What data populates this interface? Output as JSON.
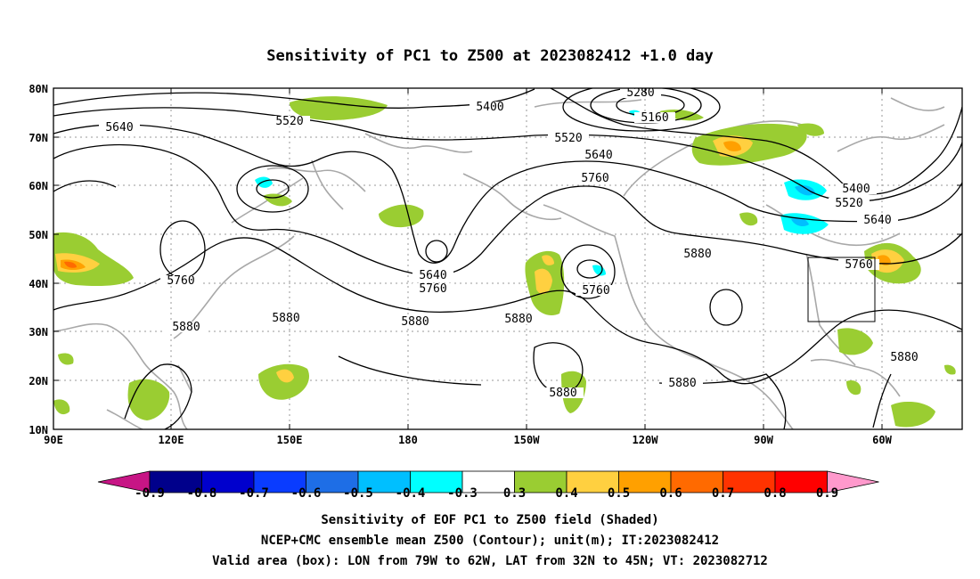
{
  "title": "Sensitivity of PC1 to Z500 at 2023082412 +1.0 day",
  "lat_ticks": [
    "80N",
    "70N",
    "60N",
    "50N",
    "40N",
    "30N",
    "20N",
    "10N"
  ],
  "lon_ticks": [
    "90E",
    "120E",
    "150E",
    "180",
    "150W",
    "120W",
    "90W",
    "60W"
  ],
  "contour_labels": [
    "5280",
    "5160",
    "5400",
    "5520",
    "5640",
    "5520",
    "5640",
    "5760",
    "5640",
    "5760",
    "5880",
    "5760",
    "5880",
    "5880",
    "5880",
    "5760",
    "5880",
    "5880",
    "5760",
    "5880",
    "5400",
    "5520",
    "5640",
    "5760",
    "5880"
  ],
  "colorbar": {
    "labels": [
      "-0.9",
      "-0.8",
      "-0.7",
      "-0.6",
      "-0.5",
      "-0.4",
      "-0.3",
      "0.3",
      "0.4",
      "0.5",
      "0.6",
      "0.7",
      "0.8",
      "0.9"
    ],
    "colors": [
      "#c71585",
      "#00008b",
      "#0000cd",
      "#0a3cff",
      "#1e6ee6",
      "#00bfff",
      "#00ffff",
      "#ffffff",
      "#9acd32",
      "#ffd040",
      "#ffa000",
      "#ff6a00",
      "#ff3300",
      "#ff0000",
      "#ff99cc"
    ]
  },
  "captions": {
    "line1": "Sensitivity of EOF PC1 to Z500 field (Shaded)",
    "line2": "NCEP+CMC ensemble mean Z500 (Contour); unit(m); IT:2023082412",
    "line3": "Valid area (box): LON from 79W to 62W, LAT from 32N to 45N; VT: 2023082712"
  }
}
